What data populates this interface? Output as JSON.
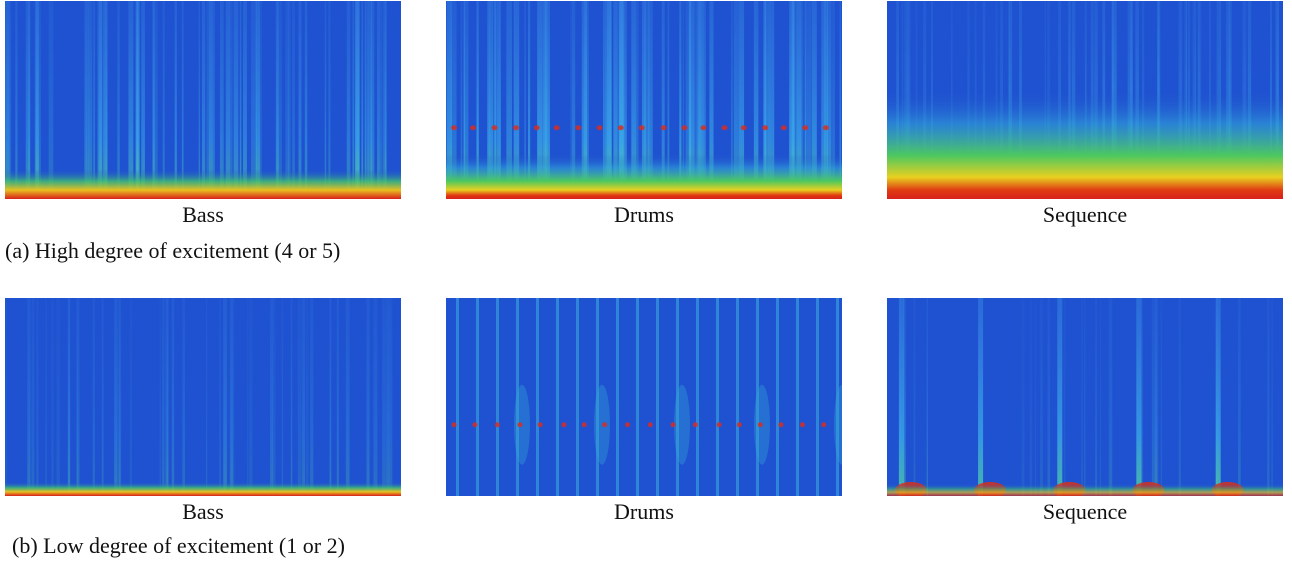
{
  "rows": [
    {
      "panels": [
        {
          "label": "Bass"
        },
        {
          "label": "Drums"
        },
        {
          "label": "Sequence"
        }
      ],
      "caption": "(a) High degree of excitement (4 or 5)"
    },
    {
      "panels": [
        {
          "label": "Bass"
        },
        {
          "label": "Drums"
        },
        {
          "label": "Sequence"
        }
      ],
      "caption": "(b) Low degree of excitement (1 or 2)"
    }
  ]
}
